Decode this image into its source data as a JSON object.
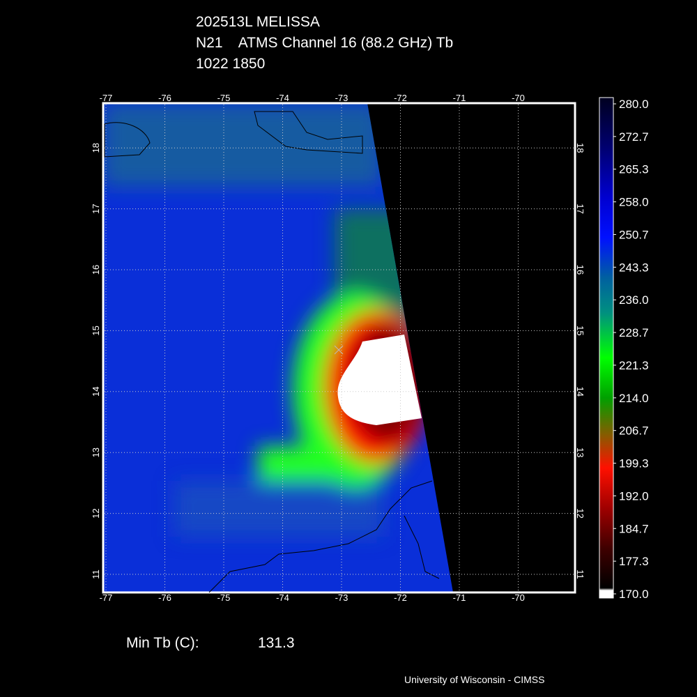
{
  "header": {
    "lines": [
      "202513L MELISSA",
      "N21    ATMS Channel 16 (88.2 GHz) Tb",
      "1022 1850"
    ]
  },
  "map": {
    "lon_ticks": [
      -77,
      -76,
      -75,
      -74,
      -73,
      -72,
      -71,
      -70
    ],
    "lat_ticks": [
      11,
      12,
      13,
      14,
      15,
      16,
      17,
      18
    ]
  },
  "colorbar": {
    "labels": [
      "280.0",
      "272.7",
      "265.3",
      "258.0",
      "250.7",
      "243.3",
      "236.0",
      "228.7",
      "221.3",
      "214.0",
      "206.7",
      "199.3",
      "192.0",
      "184.7",
      "177.3",
      "170.0"
    ]
  },
  "footer": {
    "min_label": "Min Tb (C):",
    "min_value": "131.3",
    "credit": "University of Wisconsin - CIMSS"
  }
}
